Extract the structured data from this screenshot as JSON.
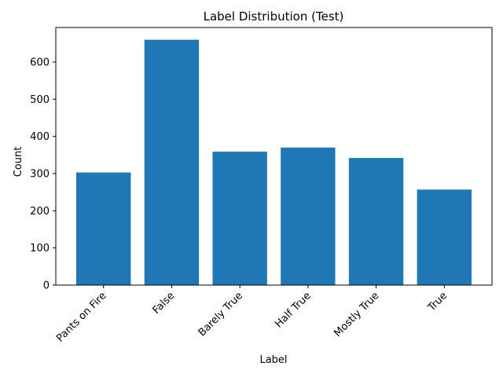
{
  "chart_data": {
    "type": "bar",
    "title": "Label Distribution (Test)",
    "xlabel": "Label",
    "ylabel": "Count",
    "categories": [
      "Pants on Fire",
      "False",
      "Barely True",
      "Half True",
      "Mostly True",
      "True"
    ],
    "values": [
      303,
      660,
      359,
      370,
      342,
      257
    ],
    "ylim": [
      0,
      693
    ],
    "yticks": [
      0,
      100,
      200,
      300,
      400,
      500,
      600
    ],
    "grid": false,
    "bar_color": "#1f77b4"
  }
}
